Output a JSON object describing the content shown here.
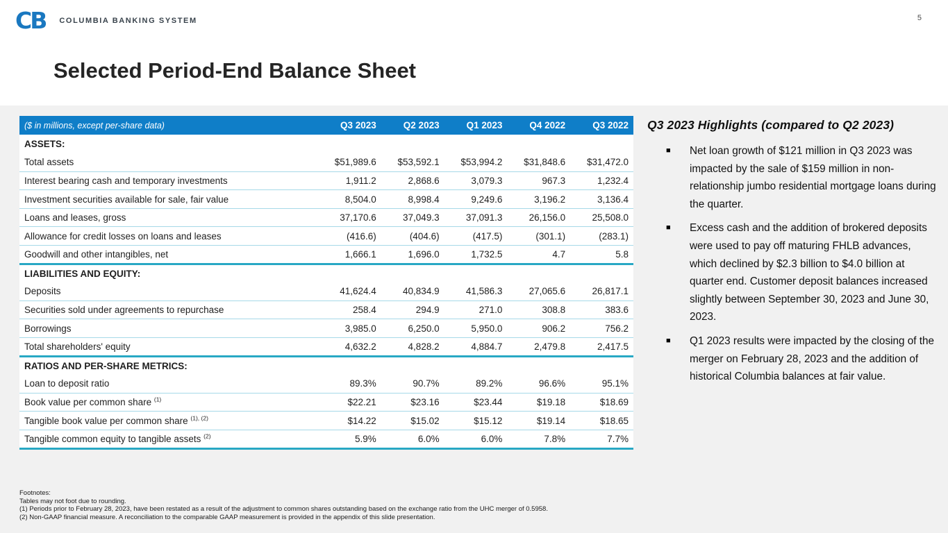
{
  "page": {
    "number": "5"
  },
  "logo": {
    "mark": "CB",
    "name": "COLUMBIA BANKING SYSTEM"
  },
  "title": "Selected Period-End Balance Sheet",
  "colors": {
    "header_blue": "#0f7ec8",
    "accent_teal": "#28a8c4",
    "row_line_cyan": "#a6d9e8",
    "logo_blue": "#1a78c0",
    "background_gray": "#f1f1f1"
  },
  "icons": {
    "logo_mark": "cb-logo-icon",
    "bullet": "square-bullet-icon",
    "bullet_glyph": "■"
  },
  "table": {
    "caption": "($ in millions, except per-share data)",
    "columns": [
      "Q3 2023",
      "Q2 2023",
      "Q1 2023",
      "Q4 2022",
      "Q3 2022"
    ],
    "sections": [
      {
        "heading": "ASSETS:",
        "rows": [
          {
            "label": "Total assets",
            "sup": "",
            "values": [
              "$51,989.6",
              "$53,592.1",
              "$53,994.2",
              "$31,848.6",
              "$31,472.0"
            ]
          },
          {
            "label": "Interest bearing cash and temporary investments",
            "sup": "",
            "values": [
              "1,911.2",
              "2,868.6",
              "3,079.3",
              "967.3",
              "1,232.4"
            ]
          },
          {
            "label": "Investment securities available for sale, fair value",
            "sup": "",
            "values": [
              "8,504.0",
              "8,998.4",
              "9,249.6",
              "3,196.2",
              "3,136.4"
            ]
          },
          {
            "label": "Loans and leases, gross",
            "sup": "",
            "values": [
              "37,170.6",
              "37,049.3",
              "37,091.3",
              "26,156.0",
              "25,508.0"
            ]
          },
          {
            "label": "Allowance for credit losses on loans and leases",
            "sup": "",
            "values": [
              "(416.6)",
              "(404.6)",
              "(417.5)",
              "(301.1)",
              "(283.1)"
            ]
          },
          {
            "label": "Goodwill and other intangibles, net",
            "sup": "",
            "values": [
              "1,666.1",
              "1,696.0",
              "1,732.5",
              "4.7",
              "5.8"
            ]
          }
        ]
      },
      {
        "heading": "LIABILITIES AND EQUITY:",
        "rows": [
          {
            "label": "Deposits",
            "sup": "",
            "values": [
              "41,624.4",
              "40,834.9",
              "41,586.3",
              "27,065.6",
              "26,817.1"
            ]
          },
          {
            "label": "Securities sold under agreements to repurchase",
            "sup": "",
            "values": [
              "258.4",
              "294.9",
              "271.0",
              "308.8",
              "383.6"
            ]
          },
          {
            "label": "Borrowings",
            "sup": "",
            "values": [
              "3,985.0",
              "6,250.0",
              "5,950.0",
              "906.2",
              "756.2"
            ]
          },
          {
            "label": "Total shareholders' equity",
            "sup": "",
            "values": [
              "4,632.2",
              "4,828.2",
              "4,884.7",
              "2,479.8",
              "2,417.5"
            ]
          }
        ]
      },
      {
        "heading": "RATIOS AND PER-SHARE METRICS:",
        "rows": [
          {
            "label": "Loan to deposit ratio",
            "sup": "",
            "values": [
              "89.3%",
              "90.7%",
              "89.2%",
              "96.6%",
              "95.1%"
            ]
          },
          {
            "label": "Book value per common share",
            "sup": "(1)",
            "values": [
              "$22.21",
              "$23.16",
              "$23.44",
              "$19.18",
              "$18.69"
            ]
          },
          {
            "label": "Tangible book value per common share",
            "sup": "(1), (2)",
            "values": [
              "$14.22",
              "$15.02",
              "$15.12",
              "$19.14",
              "$18.65"
            ]
          },
          {
            "label": "Tangible common equity to tangible assets",
            "sup": "(2)",
            "values": [
              "5.9%",
              "6.0%",
              "6.0%",
              "7.8%",
              "7.7%"
            ]
          }
        ]
      }
    ]
  },
  "highlights": {
    "heading": "Q3 2023 Highlights (compared to Q2 2023)",
    "bullets": [
      "Net loan growth of $121 million in Q3 2023 was impacted by the sale of $159 million in non-relationship jumbo residential mortgage loans during the quarter.",
      "Excess cash and the addition of brokered deposits were used to pay off maturing FHLB advances, which declined by $2.3 billion to $4.0 billion at quarter end. Customer deposit balances increased slightly between September 30, 2023 and June 30, 2023.",
      "Q1 2023 results were impacted by the closing of the merger on February 28, 2023 and the addition of historical Columbia balances at fair value."
    ]
  },
  "footnotes": {
    "lines": [
      "Footnotes:",
      "Tables may not foot due to rounding.",
      "(1) Periods prior to February 28, 2023, have been restated as a result of the adjustment to common shares outstanding based on the exchange ratio from the UHC merger of 0.5958.",
      "(2) Non-GAAP financial measure.  A reconciliation to the comparable GAAP measurement is provided in the appendix of this slide presentation."
    ]
  }
}
